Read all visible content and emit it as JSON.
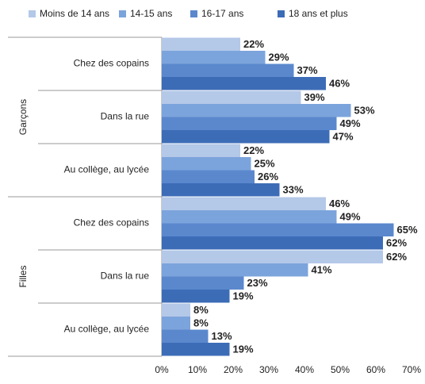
{
  "chart_data": {
    "type": "hbar_grouped",
    "groups": [
      "Garçons",
      "Filles"
    ],
    "categories": [
      "Chez des copains",
      "Dans la rue",
      "Au collège, au lycée",
      "Chez des copains",
      "Dans la rue",
      "Au collège, au lycée"
    ],
    "series": [
      {
        "name": "Moins de 14 ans",
        "color": "#b4c8e8",
        "values": [
          22,
          39,
          22,
          46,
          62,
          8
        ],
        "value_labels": [
          "22%",
          "39%",
          "22%",
          "46%",
          "62%",
          "8%"
        ]
      },
      {
        "name": "14-15 ans",
        "color": "#7ca4dc",
        "values": [
          29,
          53,
          25,
          49,
          41,
          8
        ],
        "value_labels": [
          "29%",
          "53%",
          "25%",
          "49%",
          "41%",
          "8%"
        ]
      },
      {
        "name": "16-17 ans",
        "color": "#5b88cd",
        "values": [
          37,
          49,
          26,
          65,
          23,
          13
        ],
        "value_labels": [
          "37%",
          "49%",
          "26%",
          "65%",
          "23%",
          "13%"
        ]
      },
      {
        "name": "18 ans et plus",
        "color": "#3d6cb7",
        "values": [
          46,
          47,
          33,
          62,
          19,
          19
        ],
        "value_labels": [
          "46%",
          "47%",
          "33%",
          "62%",
          "19%",
          "19%"
        ]
      }
    ],
    "xlim": [
      0,
      70
    ],
    "xticks": [
      {
        "value": 0,
        "label": "0%"
      },
      {
        "value": 10,
        "label": "10%"
      },
      {
        "value": 20,
        "label": "20%"
      },
      {
        "value": 30,
        "label": "30%"
      },
      {
        "value": 40,
        "label": "40%"
      },
      {
        "value": 50,
        "label": "50%"
      },
      {
        "value": 60,
        "label": "60%"
      },
      {
        "value": 70,
        "label": "70%"
      }
    ],
    "legend": "top"
  }
}
